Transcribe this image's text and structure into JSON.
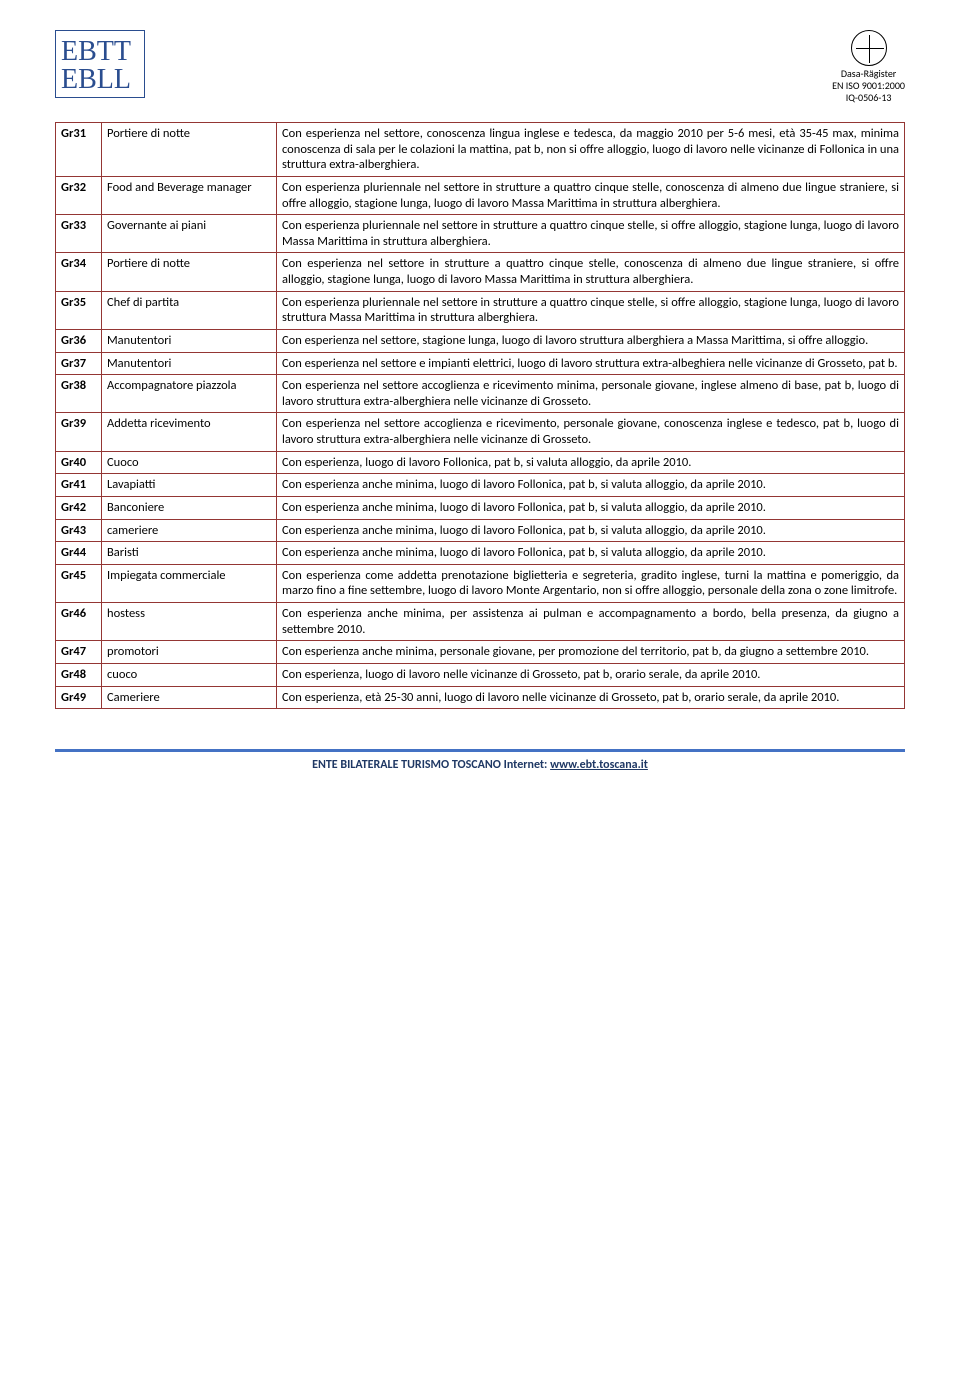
{
  "logo_right": {
    "line1": "Dasa-Rägister",
    "line2": "EN ISO 9001:2000",
    "line3": "IQ-0506-13"
  },
  "table": {
    "border_color": "#943634",
    "rows": [
      {
        "code": "Gr31",
        "role": "Portiere di notte",
        "desc": "Con esperienza nel settore, conoscenza lingua inglese e tedesca, da maggio 2010 per 5-6 mesi, età 35-45 max, minima conoscenza di sala per le colazioni la mattina, pat b, non si offre alloggio, luogo di lavoro nelle vicinanze di Follonica in una struttura extra-alberghiera."
      },
      {
        "code": "Gr32",
        "role": "Food and Beverage manager",
        "desc": "Con esperienza pluriennale nel settore in strutture a quattro cinque stelle, conoscenza di almeno due lingue straniere, si offre alloggio, stagione lunga, luogo di lavoro Massa Marittima in struttura alberghiera."
      },
      {
        "code": "Gr33",
        "role": "Governante ai piani",
        "desc": "Con esperienza pluriennale nel settore in strutture a quattro cinque stelle, si offre alloggio, stagione lunga, luogo di lavoro Massa Marittima in struttura alberghiera."
      },
      {
        "code": "Gr34",
        "role": "Portiere di notte",
        "desc": "Con esperienza nel settore in strutture a quattro cinque stelle, conoscenza di almeno due lingue straniere, si offre alloggio, stagione lunga, luogo di lavoro Massa Marittima in struttura alberghiera."
      },
      {
        "code": "Gr35",
        "role": "Chef di partita",
        "desc": "Con esperienza pluriennale nel settore in strutture a quattro cinque stelle, si offre alloggio, stagione lunga, luogo di lavoro struttura Massa Marittima in struttura alberghiera."
      },
      {
        "code": "Gr36",
        "role": "Manutentori",
        "desc": "Con esperienza nel settore, stagione lunga, luogo di lavoro struttura alberghiera a Massa Marittima, si offre alloggio."
      },
      {
        "code": "Gr37",
        "role": "Manutentori",
        "desc": "Con esperienza nel settore e impianti elettrici, luogo di lavoro struttura extra-albeghiera nelle vicinanze di Grosseto, pat b."
      },
      {
        "code": "Gr38",
        "role": "Accompagnatore piazzola",
        "desc": "Con esperienza nel settore accoglienza e ricevimento minima, personale giovane, inglese almeno di base, pat b, luogo di lavoro struttura extra-alberghiera nelle vicinanze di Grosseto."
      },
      {
        "code": "Gr39",
        "role": "Addetta ricevimento",
        "desc": "Con esperienza nel settore accoglienza e ricevimento, personale giovane, conoscenza inglese e tedesco, pat b, luogo di lavoro struttura extra-alberghiera nelle vicinanze di Grosseto."
      },
      {
        "code": "Gr40",
        "role": "Cuoco",
        "desc": "Con esperienza, luogo di lavoro Follonica, pat b, si valuta alloggio, da aprile 2010."
      },
      {
        "code": "Gr41",
        "role": "Lavapiatti",
        "desc": "Con esperienza anche minima, luogo di lavoro Follonica, pat b, si valuta alloggio, da aprile 2010."
      },
      {
        "code": "Gr42",
        "role": "Banconiere",
        "desc": "Con esperienza anche minima, luogo di lavoro Follonica, pat b, si valuta alloggio, da aprile 2010."
      },
      {
        "code": "Gr43",
        "role": "cameriere",
        "desc": "Con esperienza anche minima, luogo di lavoro Follonica, pat b, si valuta alloggio, da aprile 2010."
      },
      {
        "code": "Gr44",
        "role": "Baristi",
        "desc": "Con esperienza anche minima, luogo di lavoro Follonica, pat b, si valuta alloggio, da aprile 2010."
      },
      {
        "code": "Gr45",
        "role": "Impiegata commerciale",
        "desc": "Con esperienza come addetta prenotazione biglietteria e segreteria, gradito inglese, turni la mattina e pomeriggio, da marzo fino a fine settembre, luogo di lavoro Monte Argentario, non si offre alloggio, personale della zona o zone limitrofe."
      },
      {
        "code": "Gr46",
        "role": "hostess",
        "desc": "Con esperienza anche minima, per assistenza ai pulman e accompagnamento a bordo, bella presenza, da giugno a settembre 2010."
      },
      {
        "code": "Gr47",
        "role": "promotori",
        "desc": "Con esperienza anche minima, personale giovane, per promozione del territorio, pat b, da giugno a settembre 2010."
      },
      {
        "code": "Gr48",
        "role": "cuoco",
        "desc": "Con esperienza, luogo di lavoro nelle vicinanze di Grosseto, pat b, orario serale, da aprile 2010."
      },
      {
        "code": "Gr49",
        "role": "Cameriere",
        "desc": "Con esperienza, età 25-30 anni, luogo di lavoro nelle vicinanze di Grosseto, pat b, orario serale, da aprile 2010."
      }
    ]
  },
  "footer": {
    "text_before": "ENTE BILATERALE TURISMO TOSCANO",
    "text_mid": " Internet: ",
    "link": "www.ebt.toscana.it",
    "border_color": "#4472c4",
    "text_color": "#1f3864"
  }
}
